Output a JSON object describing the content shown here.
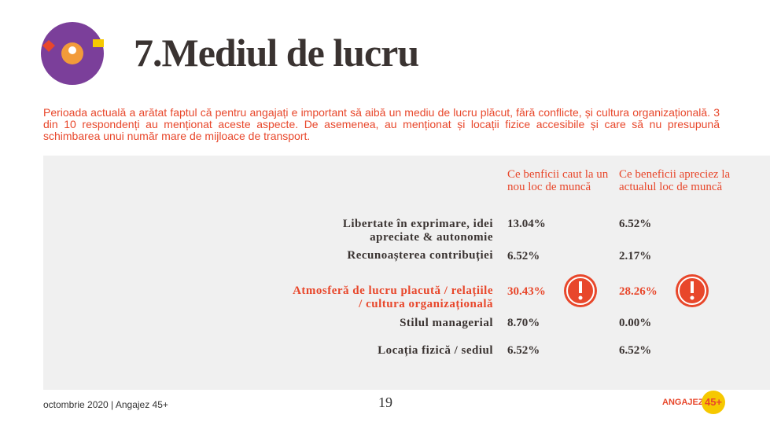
{
  "header": {
    "title": "7.Mediul de lucru"
  },
  "intro": "Perioada actuală a arătat faptul că pentru angajați e important să aibă un mediu de lucru plăcut, fără conflicte, și cultura organizațională. 3 din 10 respondenți au menționat aceste aspecte. De asemenea, au menționat și locații fizice accesibile și care să nu presupună schimbarea unui număr mare de mijloace de transport.",
  "table": {
    "columns": [
      "Ce benficii caut la un nou loc de muncă",
      "Ce beneficii apreciez la actualul loc de muncă"
    ],
    "rows": [
      {
        "label": "Libertate în exprimare, idei apreciate & autonomie",
        "values": [
          "13.04%",
          "6.52%"
        ]
      },
      {
        "label": "Recunoașterea contribuției",
        "values": [
          "6.52%",
          "2.17%"
        ]
      },
      {
        "label": "Atmosferă de lucru placută / relațiile / cultura organizațională",
        "values": [
          "30.43%",
          "28.26%"
        ],
        "highlight": true
      },
      {
        "label": "Stilul managerial",
        "values": [
          "8.70%",
          "0.00%"
        ]
      },
      {
        "label": "Locația fizică / sediul",
        "values": [
          "6.52%",
          "6.52%"
        ]
      }
    ]
  },
  "footer": {
    "left": "octombrie 2020 | Angajez 45+",
    "page": "19",
    "logo": "ANGAJEZ",
    "badge": "45+"
  }
}
